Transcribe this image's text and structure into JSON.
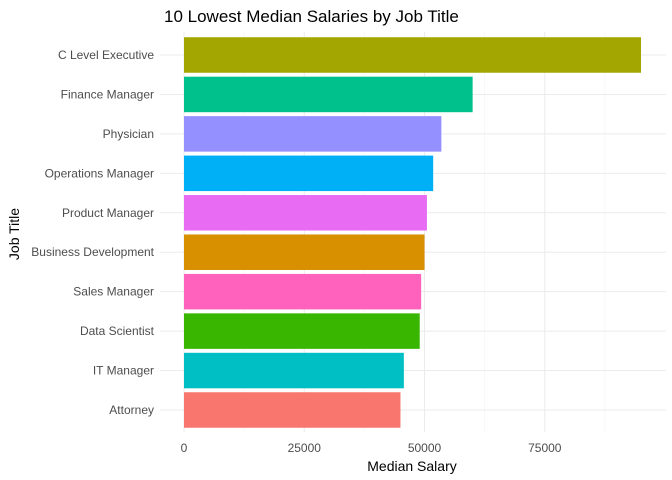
{
  "chart_data": {
    "type": "bar",
    "orientation": "horizontal",
    "title": "10 Lowest Median Salaries by Job Title",
    "xlabel": "Median Salary",
    "ylabel": "Job Title",
    "categories": [
      "Attorney",
      "IT Manager",
      "Data Scientist",
      "Sales Manager",
      "Business Development",
      "Product Manager",
      "Operations Manager",
      "Physician",
      "Finance Manager",
      "C Level Executive"
    ],
    "values": [
      45000,
      45700,
      49000,
      49300,
      50000,
      50500,
      51800,
      53500,
      60000,
      95000
    ],
    "colors": [
      "#F8766D",
      "#00BFC4",
      "#39B600",
      "#FF62BC",
      "#D89000",
      "#E76BF3",
      "#00B0F6",
      "#9590FF",
      "#00C08B",
      "#A3A500"
    ],
    "xlim": [
      0,
      95000
    ],
    "xticks": [
      0,
      25000,
      50000,
      75000
    ],
    "xtick_labels": [
      "0",
      "25000",
      "50000",
      "75000"
    ],
    "grid": true,
    "legend": "none"
  }
}
